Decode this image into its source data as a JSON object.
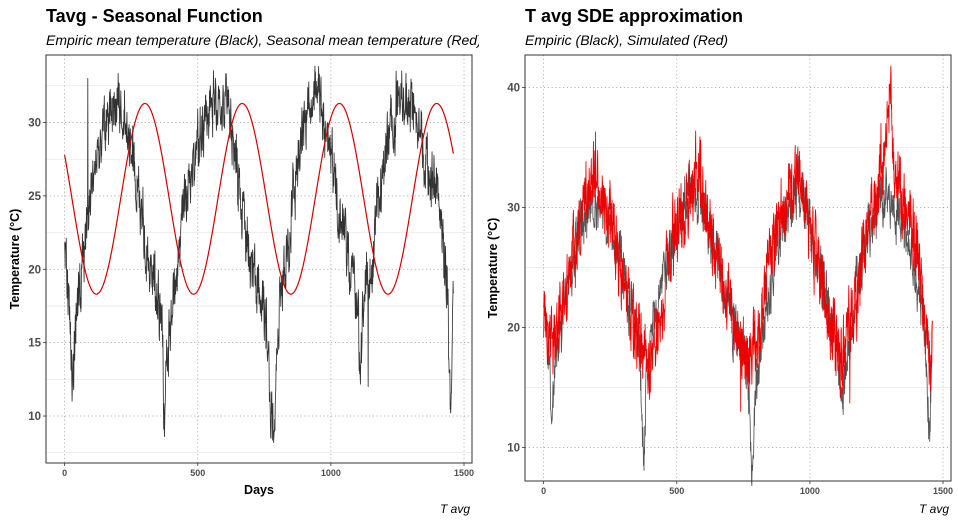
{
  "chart_data": [
    {
      "type": "line",
      "title": "Tavg - Seasonal Function",
      "subtitle": "Empiric mean temperature (Black), Seasonal mean temperature (Red)",
      "xlabel": "Days",
      "ylabel": "Temperature (°C)",
      "caption": "T avg",
      "xlim": [
        -70,
        1530
      ],
      "ylim": [
        6.8,
        34.6
      ],
      "x_ticks": [
        0,
        500,
        1000,
        1500
      ],
      "y_ticks": [
        10,
        15,
        20,
        25,
        30
      ],
      "grid": true,
      "series": [
        {
          "name": "Empiric mean temperature",
          "color": "#333333",
          "kind": "noisy",
          "anchors": [
            [
              0,
              21.5
            ],
            [
              15,
              18
            ],
            [
              30,
              13
            ],
            [
              45,
              16.5
            ],
            [
              60,
              19
            ],
            [
              80,
              22.5
            ],
            [
              100,
              25.5
            ],
            [
              120,
              27.5
            ],
            [
              140,
              29.8
            ],
            [
              160,
              30.6
            ],
            [
              180,
              31.2
            ],
            [
              200,
              31.8
            ],
            [
              215,
              31.3
            ],
            [
              230,
              30.5
            ],
            [
              250,
              28.2
            ],
            [
              270,
              25.5
            ],
            [
              290,
              23.5
            ],
            [
              310,
              21
            ],
            [
              330,
              19.8
            ],
            [
              350,
              17.5
            ],
            [
              365,
              16
            ],
            [
              375,
              9
            ],
            [
              385,
              14
            ],
            [
              400,
              17
            ],
            [
              420,
              20
            ],
            [
              440,
              23
            ],
            [
              460,
              25.5
            ],
            [
              480,
              27
            ],
            [
              500,
              28.5
            ],
            [
              520,
              30
            ],
            [
              540,
              31
            ],
            [
              560,
              31.5
            ],
            [
              580,
              31.3
            ],
            [
              600,
              31
            ],
            [
              620,
              30
            ],
            [
              640,
              27.5
            ],
            [
              660,
              24.8
            ],
            [
              680,
              22.5
            ],
            [
              700,
              20.3
            ],
            [
              720,
              18.8
            ],
            [
              740,
              17.8
            ],
            [
              760,
              15.5
            ],
            [
              775,
              11
            ],
            [
              785,
              9
            ],
            [
              800,
              16.5
            ],
            [
              820,
              19
            ],
            [
              840,
              22
            ],
            [
              860,
              25.2
            ],
            [
              880,
              27.8
            ],
            [
              900,
              29.8
            ],
            [
              920,
              31
            ],
            [
              940,
              32.4
            ],
            [
              960,
              31.5
            ],
            [
              980,
              29.5
            ],
            [
              1000,
              27.5
            ],
            [
              1020,
              25.5
            ],
            [
              1040,
              23.2
            ],
            [
              1060,
              21
            ],
            [
              1080,
              19.3
            ],
            [
              1100,
              17.8
            ],
            [
              1110,
              13
            ],
            [
              1120,
              17
            ],
            [
              1140,
              19
            ],
            [
              1160,
              21.5
            ],
            [
              1180,
              24.5
            ],
            [
              1200,
              27
            ],
            [
              1220,
              29
            ],
            [
              1240,
              30.5
            ],
            [
              1260,
              31.5
            ],
            [
              1280,
              31.8
            ],
            [
              1300,
              31.2
            ],
            [
              1320,
              30.5
            ],
            [
              1340,
              29.5
            ],
            [
              1360,
              27.8
            ],
            [
              1380,
              26
            ],
            [
              1400,
              24.5
            ],
            [
              1420,
              21.5
            ],
            [
              1435,
              19
            ],
            [
              1450,
              10.5
            ],
            [
              1460,
              20
            ]
          ],
          "noise": 1.6,
          "extremes": [
            [
              87,
              33.0
            ],
            [
              205,
              32.6
            ],
            [
              375,
              8.6
            ],
            [
              560,
              32.0
            ],
            [
              785,
              8.2
            ],
            [
              945,
              32.8
            ],
            [
              1140,
              12.0
            ],
            [
              1245,
              33.5
            ],
            [
              1450,
              10.2
            ]
          ]
        },
        {
          "name": "Seasonal mean temperature",
          "color": "#d40000",
          "kind": "smooth",
          "function": {
            "offset": 24.8,
            "amplitude": 6.5,
            "period": 365.25,
            "phase_day": 119,
            "slope": 0.0
          }
        }
      ]
    },
    {
      "type": "line",
      "title": "T avg SDE approximation",
      "subtitle": "Empiric (Black), Simulated (Red)",
      "xlabel": "",
      "ylabel": "Temperature (°C)",
      "caption": "T avg",
      "xlim": [
        -70,
        1530
      ],
      "ylim": [
        7.2,
        42.7
      ],
      "x_ticks": [
        0,
        500,
        1000,
        1500
      ],
      "y_ticks": [
        10,
        20,
        30,
        40
      ],
      "grid": true,
      "series": [
        {
          "name": "Empiric",
          "color": "#555555",
          "kind": "noisy",
          "anchors": [
            [
              0,
              21
            ],
            [
              20,
              18
            ],
            [
              30,
              13
            ],
            [
              50,
              17.5
            ],
            [
              80,
              22
            ],
            [
              100,
              25
            ],
            [
              130,
              28
            ],
            [
              160,
              29.5
            ],
            [
              200,
              30.5
            ],
            [
              240,
              29
            ],
            [
              280,
              26
            ],
            [
              320,
              22.5
            ],
            [
              360,
              18.5
            ],
            [
              375,
              9
            ],
            [
              390,
              17
            ],
            [
              420,
              21
            ],
            [
              460,
              25
            ],
            [
              500,
              28
            ],
            [
              530,
              30
            ],
            [
              560,
              31
            ],
            [
              600,
              30
            ],
            [
              640,
              27
            ],
            [
              680,
              23
            ],
            [
              720,
              20
            ],
            [
              760,
              17
            ],
            [
              785,
              8.5
            ],
            [
              800,
              17
            ],
            [
              840,
              22
            ],
            [
              880,
              27
            ],
            [
              920,
              30
            ],
            [
              950,
              31.5
            ],
            [
              980,
              30
            ],
            [
              1020,
              26.5
            ],
            [
              1060,
              22.5
            ],
            [
              1100,
              19
            ],
            [
              1120,
              14
            ],
            [
              1150,
              19
            ],
            [
              1180,
              24
            ],
            [
              1220,
              28
            ],
            [
              1260,
              30.5
            ],
            [
              1300,
              31
            ],
            [
              1340,
              29
            ],
            [
              1380,
              26
            ],
            [
              1420,
              22.5
            ],
            [
              1450,
              12
            ],
            [
              1460,
              20
            ]
          ],
          "noise": 1.7,
          "extremes": [
            [
              375,
              8.5
            ],
            [
              785,
              8.3
            ],
            [
              1450,
              10.5
            ]
          ]
        },
        {
          "name": "Simulated",
          "color": "#ee0000",
          "kind": "noisy",
          "anchors": [
            [
              0,
              20
            ],
            [
              40,
              19
            ],
            [
              80,
              23
            ],
            [
              120,
              27
            ],
            [
              160,
              31.5
            ],
            [
              190,
              33
            ],
            [
              220,
              31
            ],
            [
              260,
              28
            ],
            [
              300,
              24
            ],
            [
              340,
              20
            ],
            [
              380,
              18
            ],
            [
              400,
              16.5
            ],
            [
              420,
              20
            ],
            [
              460,
              24
            ],
            [
              500,
              28
            ],
            [
              540,
              31
            ],
            [
              580,
              32.5
            ],
            [
              620,
              29
            ],
            [
              660,
              25
            ],
            [
              700,
              21
            ],
            [
              740,
              18.5
            ],
            [
              780,
              17
            ],
            [
              800,
              19
            ],
            [
              840,
              24
            ],
            [
              880,
              28.5
            ],
            [
              920,
              31
            ],
            [
              960,
              32.5
            ],
            [
              1000,
              29
            ],
            [
              1040,
              24
            ],
            [
              1080,
              20
            ],
            [
              1120,
              17.5
            ],
            [
              1160,
              21
            ],
            [
              1200,
              26
            ],
            [
              1240,
              30
            ],
            [
              1280,
              35
            ],
            [
              1300,
              39
            ],
            [
              1320,
              32
            ],
            [
              1360,
              30
            ],
            [
              1400,
              27
            ],
            [
              1420,
              23
            ],
            [
              1440,
              19
            ],
            [
              1460,
              17.5
            ]
          ],
          "noise": 2.3,
          "extremes": [
            [
              195,
              36.3
            ],
            [
              590,
              35.6
            ],
            [
              740,
              13.0
            ],
            [
              1150,
              13.7
            ],
            [
              1305,
              41.2
            ]
          ]
        }
      ]
    }
  ]
}
